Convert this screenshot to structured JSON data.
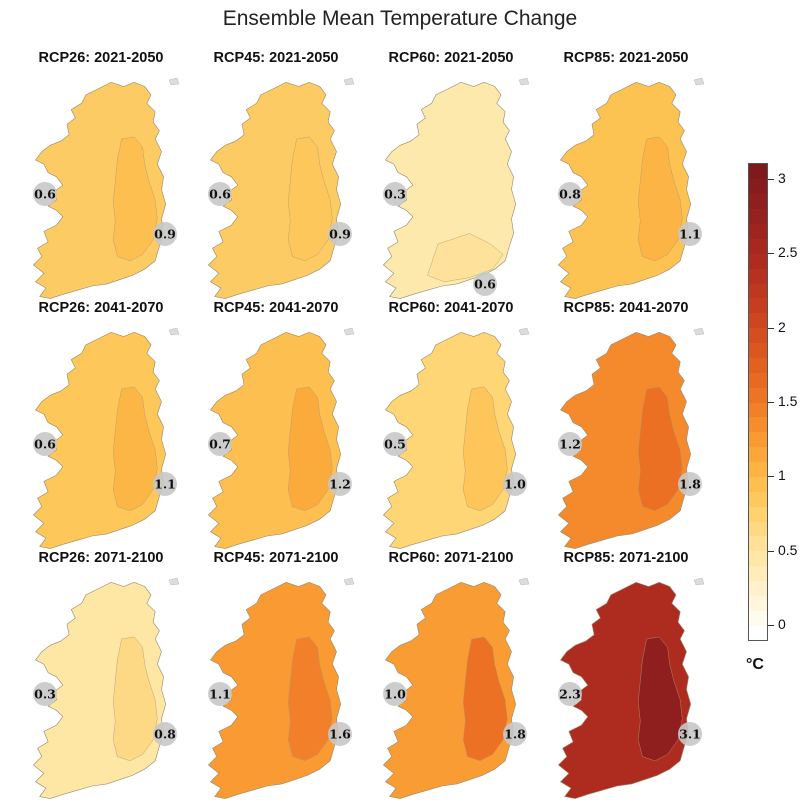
{
  "title": "Ensemble Mean Temperature Change",
  "unit": "°C",
  "colorbar": {
    "ticks": [
      "3",
      "2.5",
      "2",
      "1.5",
      "1",
      "0.5",
      "0"
    ],
    "tick_values": [
      3,
      2.5,
      2,
      1.5,
      1,
      0.5,
      0
    ],
    "min": -0.1,
    "max": 3.1,
    "step": 0.1,
    "colors": [
      "#ffffff",
      "#fffbee",
      "#fff6dd",
      "#fff1cb",
      "#ffecb9",
      "#fee7a7",
      "#fee096",
      "#fed983",
      "#fdd26f",
      "#fdc95e",
      "#fdbf4f",
      "#fdb443",
      "#fca73a",
      "#f99a33",
      "#f68d2d",
      "#f28028",
      "#ed7424",
      "#e86a22",
      "#e26020",
      "#dc571f",
      "#d54e1f",
      "#ce461f",
      "#c63e1f",
      "#be371f",
      "#b6311f",
      "#ae2c1f",
      "#a6281f",
      "#9e251f",
      "#96221f",
      "#8e1f1e",
      "#861c1d",
      "#7e1a1c"
    ]
  },
  "panels": [
    {
      "title": "RCP26: 2021-2050",
      "west_label": "0.6",
      "east_label": "0.9",
      "base_color": "#fdcb63",
      "inner_color": "#fdbf50",
      "label_pos": "east"
    },
    {
      "title": "RCP45: 2021-2050",
      "west_label": "0.6",
      "east_label": "0.9",
      "base_color": "#fdcb63",
      "inner_color": "#fdc75c",
      "label_pos": "east"
    },
    {
      "title": "RCP60: 2021-2050",
      "west_label": "0.3",
      "east_label": "0.6",
      "base_color": "#fee9ac",
      "inner_color": "#fee29c",
      "label_pos": "south"
    },
    {
      "title": "RCP85: 2021-2050",
      "west_label": "0.8",
      "east_label": "1.1",
      "base_color": "#fdc352",
      "inner_color": "#fcb444",
      "label_pos": "east"
    },
    {
      "title": "RCP26: 2041-2070",
      "west_label": "0.6",
      "east_label": "1.1",
      "base_color": "#fdc75a",
      "inner_color": "#fcb646",
      "label_pos": "east"
    },
    {
      "title": "RCP45: 2041-2070",
      "west_label": "0.7",
      "east_label": "1.2",
      "base_color": "#fdbf4f",
      "inner_color": "#fbaa3c",
      "label_pos": "east"
    },
    {
      "title": "RCP60: 2041-2070",
      "west_label": "0.5",
      "east_label": "1.0",
      "base_color": "#fed675",
      "inner_color": "#fdc55a",
      "label_pos": "east"
    },
    {
      "title": "RCP85: 2041-2070",
      "west_label": "1.2",
      "east_label": "1.8",
      "base_color": "#f58a2d",
      "inner_color": "#ec7024",
      "label_pos": "east"
    },
    {
      "title": "RCP26: 2071-2100",
      "west_label": "0.3",
      "east_label": "0.8",
      "base_color": "#fee7a5",
      "inner_color": "#fed985",
      "label_pos": "east"
    },
    {
      "title": "RCP45: 2071-2100",
      "west_label": "1.1",
      "east_label": "1.6",
      "base_color": "#f99a33",
      "inner_color": "#f2802a",
      "label_pos": "east"
    },
    {
      "title": "RCP60: 2071-2100",
      "west_label": "1.0",
      "east_label": "1.8",
      "base_color": "#fa9c34",
      "inner_color": "#ec7124",
      "label_pos": "east"
    },
    {
      "title": "RCP85: 2071-2100",
      "west_label": "2.3",
      "east_label": "3.1",
      "base_color": "#ae2c1f",
      "inner_color": "#8f1f1e",
      "label_pos": "east"
    }
  ]
}
